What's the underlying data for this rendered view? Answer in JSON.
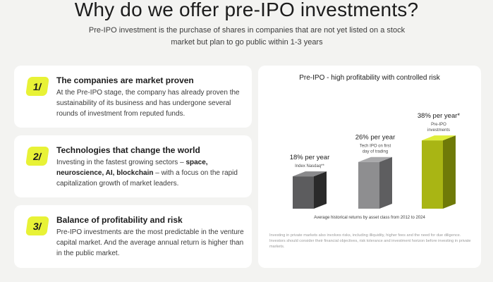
{
  "header": {
    "title": "Why do we offer pre-IPO investments?",
    "subtitle": "Pre-IPO investment is the purchase of shares in companies that are not yet listed on a stock market but plan to go public within 1-3 years"
  },
  "cards": [
    {
      "badge": "1/",
      "title": "The companies are market proven",
      "text": "At the Pre-IPO stage, the company has already proven the sustainability of its business and has undergone several rounds of investment from reputed funds."
    },
    {
      "badge": "2/",
      "title": "Technologies that change the world",
      "text_prefix": "Investing in the fastest growing sectors – ",
      "text_bold": "space, neuroscience, AI, blockchain",
      "text_suffix": " – with a focus on the rapid capitalization growth of market leaders."
    },
    {
      "badge": "3/",
      "title": "Balance of profitability and risk",
      "text": "Pre-IPO investments are the most predictable in the venture capital market. And the average annual return is higher than in the public market."
    }
  ],
  "panel": {
    "title": "Pre-IPO - high profitability with controlled risk",
    "caption": "Average historical returns by asset class from 2012 to 2024",
    "disclaimer": [
      "Investing in private markets also involves risks, including illiquidity, higher fees and the need for due diligence.",
      "Investors should consider their financial objectives, risk tolerance and investment horizon before investing in private markets."
    ]
  },
  "chart_data": {
    "type": "bar",
    "title": "Pre-IPO - high profitability with controlled risk",
    "categories": [
      "Index Nasdaq**",
      "Tech IPO on first day of trading",
      "Pre-IPO investments"
    ],
    "values": [
      18,
      26,
      38
    ],
    "value_labels": [
      "18% per year",
      "26% per year",
      "38% per year*"
    ],
    "colors": [
      "#333333",
      "#7a7a7a",
      "#c6d61e"
    ],
    "unit": "% per year",
    "xlabel": "Average historical returns by asset class from 2012 to 2024",
    "grid": false,
    "legend": "none"
  }
}
